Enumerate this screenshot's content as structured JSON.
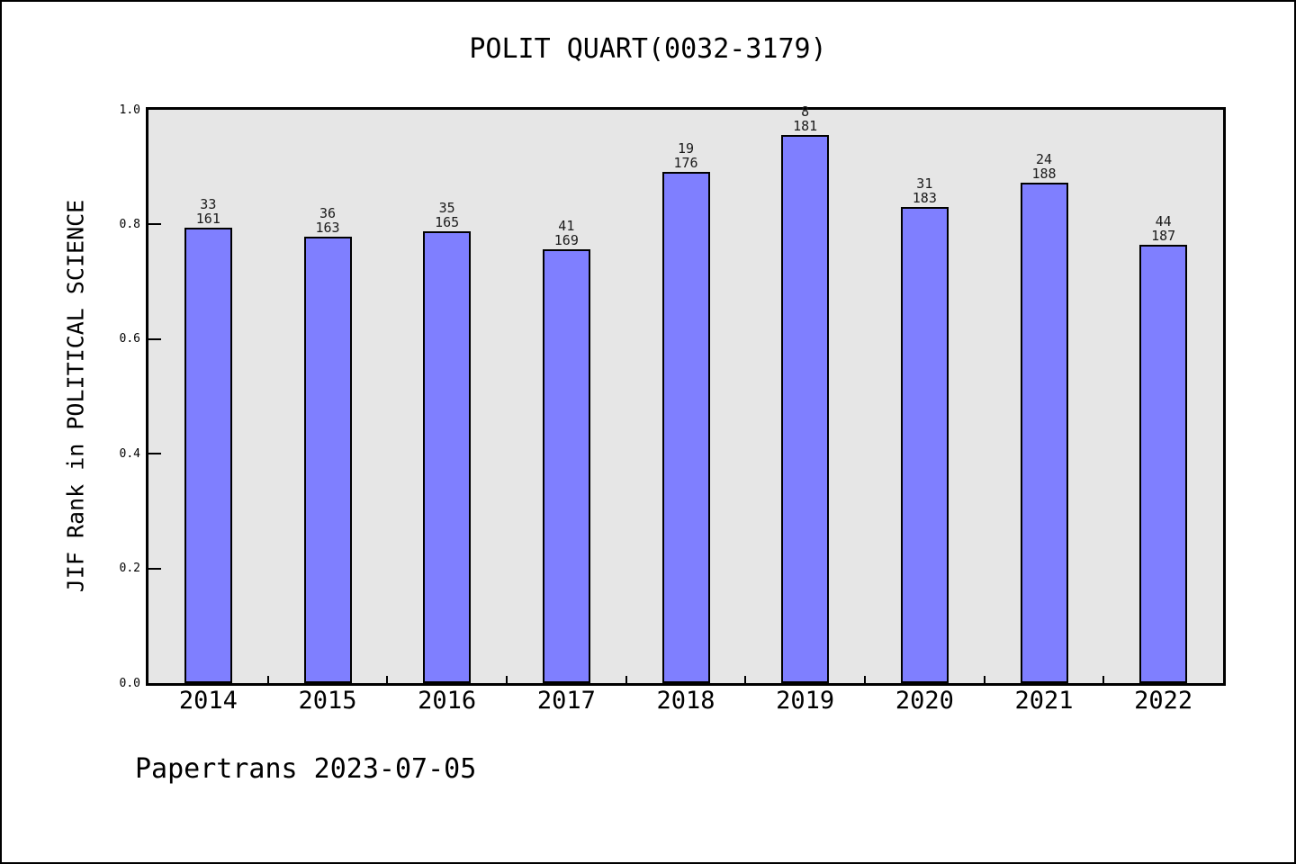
{
  "header": {
    "title": "POLIT QUART(0032-3179)"
  },
  "footer": {
    "text": "Papertrans 2023-07-05"
  },
  "colors": {
    "bar_fill": "#7f7fff",
    "bar_edge": "#000000",
    "plot_bg": "#e6e6e6",
    "figure_bg": "#ffffff",
    "bar_label_color": "#1a1a1a"
  },
  "chart_data": {
    "type": "bar",
    "title": "POLIT QUART(0032-3179)",
    "xlabel": "",
    "ylabel": "JIF Rank in POLITICAL SCIENCE",
    "categories": [
      "2014",
      "2015",
      "2016",
      "2017",
      "2018",
      "2019",
      "2020",
      "2021",
      "2022"
    ],
    "values": [
      0.795,
      0.7791,
      0.7879,
      0.7574,
      0.892,
      0.9558,
      0.8306,
      0.8723,
      0.7647
    ],
    "bar_labels": [
      {
        "rank": "33",
        "total": "161"
      },
      {
        "rank": "36",
        "total": "163"
      },
      {
        "rank": "35",
        "total": "165"
      },
      {
        "rank": "41",
        "total": "169"
      },
      {
        "rank": "19",
        "total": "176"
      },
      {
        "rank": "8",
        "total": "181"
      },
      {
        "rank": "31",
        "total": "183"
      },
      {
        "rank": "24",
        "total": "188"
      },
      {
        "rank": "44",
        "total": "187"
      }
    ],
    "ylim": [
      0.0,
      1.0
    ],
    "yticks": [
      0.0,
      0.2,
      0.4,
      0.6,
      0.8,
      1.0
    ],
    "ytick_labels": [
      "0.0",
      "0.2",
      "0.4",
      "0.6",
      "0.8",
      "1.0"
    ],
    "grid": false,
    "legend_position": "none"
  }
}
